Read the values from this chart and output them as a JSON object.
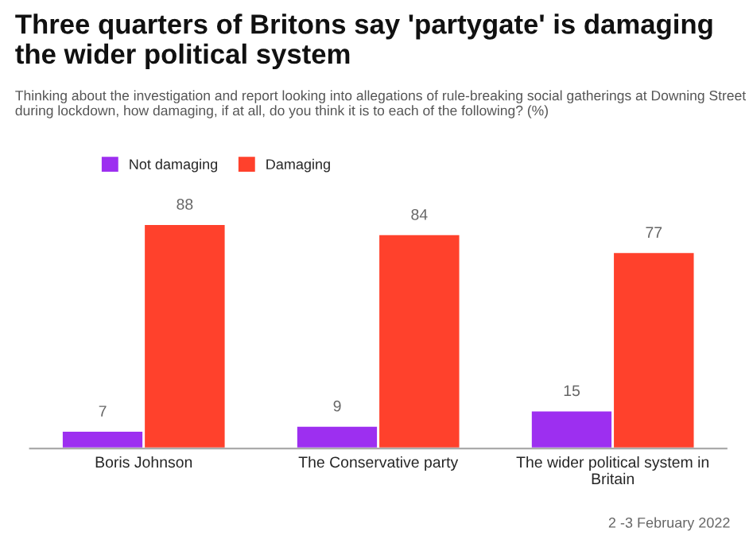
{
  "chart_data": {
    "type": "bar",
    "title": "Three quarters of Britons say 'partygate' is damaging the wider political system",
    "subtitle": "Thinking about the investigation and report looking into allegations of rule-breaking social gatherings at Downing Street during lockdown, how damaging, if at all, do you think it is to each of the following? (%)",
    "categories": [
      "Boris Johnson",
      "The Conservative party",
      "The wider political system in\nBritain"
    ],
    "series": [
      {
        "name": "Not damaging",
        "color": "#9d2ff0",
        "values": [
          7,
          9,
          15
        ]
      },
      {
        "name": "Damaging",
        "color": "#ff412c",
        "values": [
          88,
          84,
          77
        ]
      }
    ],
    "data_labels": true,
    "legend": "top left",
    "tick_labels": "x",
    "grid": false,
    "annotations": [
      "2 -3 February 2022"
    ]
  }
}
